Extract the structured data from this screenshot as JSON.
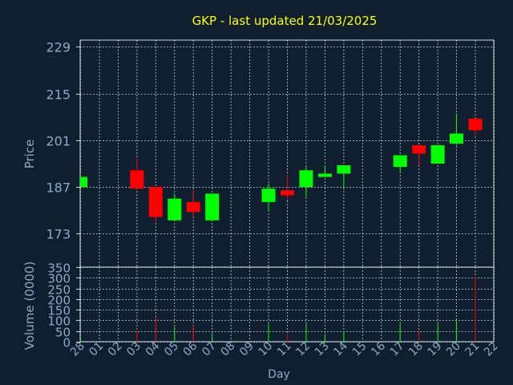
{
  "chart_data": [
    {
      "type": "candlestick",
      "title": "GKP - last updated 21/03/2025",
      "ylabel": "Price",
      "ylim": [
        163,
        231
      ],
      "yticks": [
        173,
        187,
        201,
        215,
        229
      ],
      "grid": true,
      "categories": [
        "28",
        "01",
        "02",
        "03",
        "04",
        "05",
        "06",
        "07",
        "08",
        "09",
        "10",
        "11",
        "12",
        "13",
        "14",
        "15",
        "16",
        "17",
        "18",
        "19",
        "20",
        "21",
        "22"
      ],
      "candles": [
        {
          "x": "28",
          "open": 187,
          "close": 190,
          "high": 190,
          "low": 187
        },
        {
          "x": "03",
          "open": 192,
          "close": 186.5,
          "high": 195.5,
          "low": 186.5
        },
        {
          "x": "04",
          "open": 187,
          "close": 178,
          "high": 187,
          "low": 176.5
        },
        {
          "x": "05",
          "open": 177,
          "close": 183.5,
          "high": 185,
          "low": 177
        },
        {
          "x": "06",
          "open": 182.5,
          "close": 179.5,
          "high": 186,
          "low": 178
        },
        {
          "x": "07",
          "open": 177,
          "close": 185,
          "high": 185,
          "low": 177
        },
        {
          "x": "10",
          "open": 182.5,
          "close": 186.5,
          "high": 188,
          "low": 180
        },
        {
          "x": "11",
          "open": 186,
          "close": 184.5,
          "high": 190.5,
          "low": 183
        },
        {
          "x": "12",
          "open": 187,
          "close": 192,
          "high": 193,
          "low": 184
        },
        {
          "x": "13",
          "open": 190,
          "close": 191,
          "high": 193.5,
          "low": 190
        },
        {
          "x": "14",
          "open": 191,
          "close": 193.5,
          "high": 193.5,
          "low": 187
        },
        {
          "x": "17",
          "open": 193,
          "close": 196.5,
          "high": 196.5,
          "low": 191.5
        },
        {
          "x": "18",
          "open": 199.5,
          "close": 197,
          "high": 199.5,
          "low": 193.5
        },
        {
          "x": "19",
          "open": 194,
          "close": 199.5,
          "high": 199.5,
          "low": 194
        },
        {
          "x": "20",
          "open": 200,
          "close": 203,
          "high": 209,
          "low": 199.5
        },
        {
          "x": "21",
          "open": 207.5,
          "close": 204,
          "high": 207.5,
          "low": 202.5
        }
      ],
      "up_color": "#00ff00",
      "down_color": "#ff0000"
    },
    {
      "type": "bar",
      "ylabel": "Volume (0000)",
      "xlabel": "Day",
      "ylim": [
        0,
        350
      ],
      "yticks": [
        0,
        50,
        100,
        150,
        200,
        250,
        300,
        350
      ],
      "grid": true,
      "categories": [
        "28",
        "01",
        "02",
        "03",
        "04",
        "05",
        "06",
        "07",
        "08",
        "09",
        "10",
        "11",
        "12",
        "13",
        "14",
        "15",
        "16",
        "17",
        "18",
        "19",
        "20",
        "21",
        "22"
      ],
      "bars": [
        {
          "x": "28",
          "value": 15,
          "dir": "up"
        },
        {
          "x": "03",
          "value": 60,
          "dir": "down"
        },
        {
          "x": "04",
          "value": 115,
          "dir": "down"
        },
        {
          "x": "05",
          "value": 70,
          "dir": "up"
        },
        {
          "x": "06",
          "value": 75,
          "dir": "down"
        },
        {
          "x": "07",
          "value": 40,
          "dir": "up"
        },
        {
          "x": "10",
          "value": 85,
          "dir": "up"
        },
        {
          "x": "11",
          "value": 35,
          "dir": "down"
        },
        {
          "x": "12",
          "value": 85,
          "dir": "up"
        },
        {
          "x": "13",
          "value": 35,
          "dir": "up"
        },
        {
          "x": "14",
          "value": 50,
          "dir": "up"
        },
        {
          "x": "17",
          "value": 85,
          "dir": "up"
        },
        {
          "x": "18",
          "value": 50,
          "dir": "down"
        },
        {
          "x": "19",
          "value": 85,
          "dir": "up"
        },
        {
          "x": "20",
          "value": 105,
          "dir": "up"
        },
        {
          "x": "21",
          "value": 305,
          "dir": "down"
        }
      ]
    }
  ],
  "colors": {
    "background": "#0f1f30",
    "title": "#ffff00",
    "axis_text": "#8fa8c8",
    "frame": "#d0d8e0",
    "grid": "#c8d0d8"
  }
}
